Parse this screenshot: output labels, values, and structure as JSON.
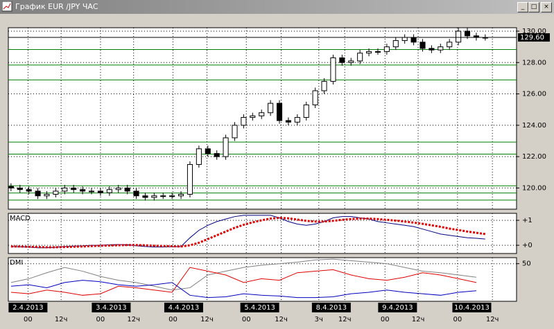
{
  "window": {
    "title": "График EUR /JPY ЧАС"
  },
  "chart_data": [
    {
      "type": "candlestick",
      "open": [
        120.1,
        120.0,
        119.9,
        119.8,
        119.5,
        119.6,
        119.8,
        120.0,
        119.9,
        119.8,
        119.8,
        119.7,
        119.9,
        120.0,
        119.8,
        119.5,
        119.4,
        119.5,
        119.5,
        119.5,
        119.6,
        121.5,
        122.5,
        122.2,
        122.0,
        123.2,
        124.0,
        124.5,
        124.6,
        124.8,
        125.4,
        124.3,
        124.2,
        124.5,
        125.3,
        126.2,
        126.8,
        128.3,
        128.0,
        128.1,
        128.6,
        128.7,
        128.7,
        129.0,
        129.4,
        129.6,
        129.3,
        128.9,
        128.8,
        129.0,
        129.3,
        130.0,
        129.7,
        129.6
      ],
      "high": [
        120.3,
        120.2,
        120.1,
        120.0,
        119.8,
        120.0,
        120.2,
        120.2,
        120.1,
        120.0,
        120.0,
        120.1,
        120.2,
        120.2,
        120.0,
        119.7,
        119.7,
        119.7,
        119.7,
        119.8,
        121.7,
        122.7,
        122.7,
        122.4,
        123.4,
        124.2,
        124.7,
        124.8,
        125.0,
        125.6,
        125.6,
        124.5,
        124.7,
        125.5,
        126.4,
        127.0,
        128.5,
        128.5,
        128.3,
        128.8,
        128.9,
        128.9,
        129.2,
        129.6,
        129.8,
        129.8,
        129.5,
        129.1,
        129.2,
        129.5,
        130.2,
        130.2,
        129.9,
        129.8
      ],
      "low": [
        119.8,
        119.7,
        119.6,
        119.3,
        119.3,
        119.4,
        119.6,
        119.7,
        119.6,
        119.6,
        119.5,
        119.5,
        119.7,
        119.6,
        119.3,
        119.2,
        119.2,
        119.3,
        119.3,
        119.3,
        119.4,
        121.3,
        122.0,
        121.8,
        121.8,
        123.0,
        123.8,
        124.3,
        124.4,
        124.6,
        124.1,
        124.0,
        124.0,
        124.3,
        125.1,
        126.0,
        126.6,
        127.8,
        127.8,
        127.9,
        128.4,
        128.5,
        128.5,
        128.8,
        129.2,
        129.1,
        128.7,
        128.6,
        128.6,
        128.8,
        129.1,
        129.5,
        129.4,
        129.4
      ],
      "close": [
        120.0,
        119.9,
        119.8,
        119.5,
        119.6,
        119.8,
        120.0,
        119.9,
        119.8,
        119.8,
        119.7,
        119.9,
        120.0,
        119.8,
        119.5,
        119.4,
        119.5,
        119.5,
        119.5,
        119.6,
        121.5,
        122.5,
        122.2,
        122.0,
        123.2,
        124.0,
        124.5,
        124.6,
        124.8,
        125.4,
        124.3,
        124.2,
        124.5,
        125.3,
        126.2,
        126.8,
        128.3,
        128.0,
        128.1,
        128.6,
        128.7,
        128.7,
        129.0,
        129.4,
        129.6,
        129.3,
        128.9,
        128.8,
        129.0,
        129.3,
        130.0,
        129.7,
        129.6,
        129.6
      ],
      "colors": {
        "up": "#ffffff",
        "down": "#000000"
      },
      "xlim": [
        -0.3,
        56.5
      ],
      "ylim": [
        118.65,
        130.22
      ],
      "yticks": [
        {
          "value": 120,
          "label": "120.00"
        },
        {
          "value": 122,
          "label": "122.00"
        },
        {
          "value": 124,
          "label": "124.00"
        },
        {
          "value": 126,
          "label": "126.00"
        },
        {
          "value": 128,
          "label": "128.00"
        },
        {
          "value": 130,
          "label": "130.00"
        }
      ],
      "levels": [
        128.83,
        127.84,
        126.89,
        122.93,
        122.16,
        120.14,
        119.68,
        119.23
      ],
      "level_color": "#008000",
      "current": {
        "value": 129.6,
        "label": "129.60"
      },
      "date_ticks": [
        {
          "value": 1.9,
          "label": "2.4.2013"
        },
        {
          "value": 11.2,
          "label": "3.4.2013"
        },
        {
          "value": 19.3,
          "label": "4.4.2013"
        },
        {
          "value": 27.8,
          "label": "5.4.2013"
        },
        {
          "value": 35.8,
          "label": "8.4.2013"
        },
        {
          "value": 43.2,
          "label": "9.4.2013"
        },
        {
          "value": 51.5,
          "label": "10.4.2013"
        }
      ],
      "time_ticks": [
        {
          "value": 1.9,
          "label": "00"
        },
        {
          "value": 5.6,
          "label": "12ч"
        },
        {
          "value": 10.0,
          "label": "00"
        },
        {
          "value": 13.7,
          "label": "12ч"
        },
        {
          "value": 18.1,
          "label": "00"
        },
        {
          "value": 21.9,
          "label": "12ч"
        },
        {
          "value": 26.3,
          "label": "00"
        },
        {
          "value": 30.2,
          "label": "12ч"
        },
        {
          "value": 34.4,
          "label": "3ч"
        },
        {
          "value": 37.3,
          "label": "12ч"
        },
        {
          "value": 41.8,
          "label": "00"
        },
        {
          "value": 45.5,
          "label": "12ч"
        },
        {
          "value": 49.9,
          "label": "00"
        },
        {
          "value": 53.8,
          "label": "12ч"
        }
      ],
      "grid": true
    },
    {
      "type": "line",
      "title": "MACD",
      "ylim": [
        -0.33,
        1.28
      ],
      "yticks": [
        {
          "value": 1,
          "label": "+1"
        },
        {
          "value": 0,
          "label": "+0"
        }
      ],
      "series": [
        {
          "name": "MACD",
          "color": "#000080",
          "values": [
            -0.05,
            -0.06,
            -0.07,
            -0.1,
            -0.1,
            -0.08,
            -0.05,
            -0.03,
            -0.02,
            0,
            0,
            0.02,
            0.03,
            0.02,
            -0.02,
            -0.05,
            -0.07,
            -0.07,
            -0.06,
            -0.05,
            0.3,
            0.6,
            0.8,
            0.95,
            1.05,
            1.15,
            1.2,
            1.2,
            1.2,
            1.2,
            1.1,
            0.95,
            0.85,
            0.8,
            0.85,
            0.95,
            1.1,
            1.15,
            1.15,
            1.1,
            1.05,
            0.95,
            0.9,
            0.85,
            0.8,
            0.75,
            0.65,
            0.55,
            0.45,
            0.4,
            0.35,
            0.3,
            0.28,
            0.25
          ]
        },
        {
          "name": "Signal",
          "color": "#e00000",
          "values": [
            -0.05,
            -0.05,
            -0.06,
            -0.07,
            -0.08,
            -0.08,
            -0.07,
            -0.06,
            -0.05,
            -0.03,
            -0.02,
            -0.01,
            0,
            0.01,
            0.01,
            0,
            -0.02,
            -0.03,
            -0.04,
            -0.05,
            0,
            0.1,
            0.25,
            0.4,
            0.55,
            0.7,
            0.82,
            0.92,
            1.0,
            1.07,
            1.1,
            1.08,
            1.03,
            0.98,
            0.95,
            0.95,
            0.98,
            1.02,
            1.05,
            1.07,
            1.07,
            1.05,
            1.02,
            0.99,
            0.95,
            0.91,
            0.86,
            0.8,
            0.74,
            0.67,
            0.61,
            0.55,
            0.5,
            0.45
          ]
        }
      ]
    },
    {
      "type": "line",
      "title": "DMI",
      "x": [
        0,
        2,
        4,
        6,
        8,
        10,
        12,
        14,
        16,
        18,
        20,
        22,
        24,
        26,
        28,
        30,
        32,
        34,
        36,
        38,
        40,
        42,
        44,
        46,
        48,
        50,
        52
      ],
      "ylim": [
        0,
        58
      ],
      "yticks": [
        50
      ],
      "series": [
        {
          "name": "ADX",
          "color": "#808080",
          "values": [
            25,
            30,
            38,
            45,
            40,
            33,
            28,
            25,
            20,
            15,
            18,
            35,
            40,
            45,
            48,
            50,
            52,
            55,
            56,
            54,
            52,
            50,
            45,
            40,
            38,
            35,
            32
          ]
        },
        {
          "name": "+DI",
          "color": "#e00000",
          "values": [
            12,
            10,
            15,
            12,
            8,
            10,
            20,
            18,
            15,
            12,
            45,
            40,
            35,
            25,
            30,
            28,
            38,
            40,
            42,
            35,
            30,
            28,
            32,
            38,
            35,
            30,
            25
          ]
        },
        {
          "name": "-DI",
          "color": "#0000c0",
          "values": [
            20,
            22,
            18,
            25,
            28,
            26,
            22,
            20,
            22,
            25,
            8,
            5,
            6,
            10,
            8,
            7,
            5,
            5,
            6,
            10,
            12,
            15,
            12,
            10,
            8,
            12,
            14
          ]
        }
      ]
    }
  ]
}
